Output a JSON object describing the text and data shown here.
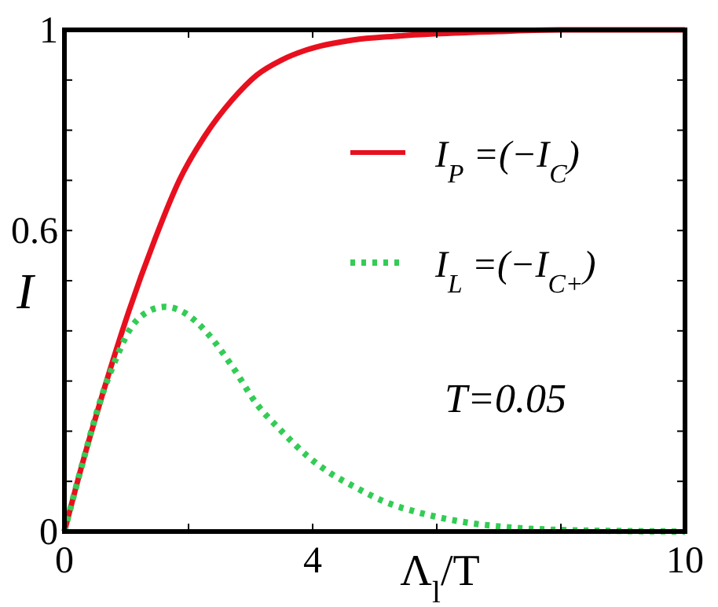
{
  "chart_data": {
    "type": "line",
    "xlabel": "Λ$_{l}$/T",
    "ylabel": "I",
    "xlim": [
      0,
      10
    ],
    "ylim": [
      0,
      1
    ],
    "xticks": [
      0,
      {
        "value": 2,
        "label": null
      },
      4,
      {
        "value": 6,
        "label": null
      },
      {
        "value": 8,
        "label": null
      },
      10
    ],
    "yticks": [
      0,
      {
        "value": 0.1,
        "label": null
      },
      {
        "value": 0.2,
        "label": null
      },
      {
        "value": 0.3,
        "label": null
      },
      {
        "value": 0.4,
        "label": null
      },
      {
        "value": 0.5,
        "label": null
      },
      0.6,
      {
        "value": 0.7,
        "label": null
      },
      {
        "value": 0.8,
        "label": null
      },
      {
        "value": 0.9,
        "label": null
      },
      1
    ],
    "series": [
      {
        "name": "I$_{P}$ =(−I$_{C}$)",
        "color": "#e8101e",
        "line_style": "solid",
        "x": [
          0,
          0.3,
          0.63,
          1.04,
          1.45,
          1.85,
          2.27,
          2.7,
          3.1,
          3.5,
          3.9,
          4.66,
          5.3,
          5.96,
          7,
          8,
          10
        ],
        "values": [
          0,
          0.14,
          0.28,
          0.44,
          0.58,
          0.7,
          0.79,
          0.86,
          0.91,
          0.94,
          0.96,
          0.98,
          0.987,
          0.992,
          0.997,
          1,
          1
        ]
      },
      {
        "name": "I$_{L}$ =(−I$_{C+}$)",
        "color": "#33cc55",
        "line_style": "dotted",
        "x": [
          0,
          0.3,
          0.63,
          0.85,
          1.04,
          1.3,
          1.62,
          1.95,
          2.27,
          2.7,
          3.1,
          3.5,
          3.92,
          4.3,
          4.66,
          5.15,
          5.8,
          6.38,
          7.2,
          8,
          9,
          10
        ],
        "values": [
          0,
          0.14,
          0.28,
          0.35,
          0.4,
          0.435,
          0.448,
          0.435,
          0.4,
          0.33,
          0.254,
          0.2,
          0.15,
          0.115,
          0.09,
          0.06,
          0.035,
          0.02,
          0.008,
          0.003,
          0.001,
          0
        ]
      }
    ],
    "legend": "top right",
    "grid": false,
    "annotations": [
      "T=0.05"
    ]
  }
}
